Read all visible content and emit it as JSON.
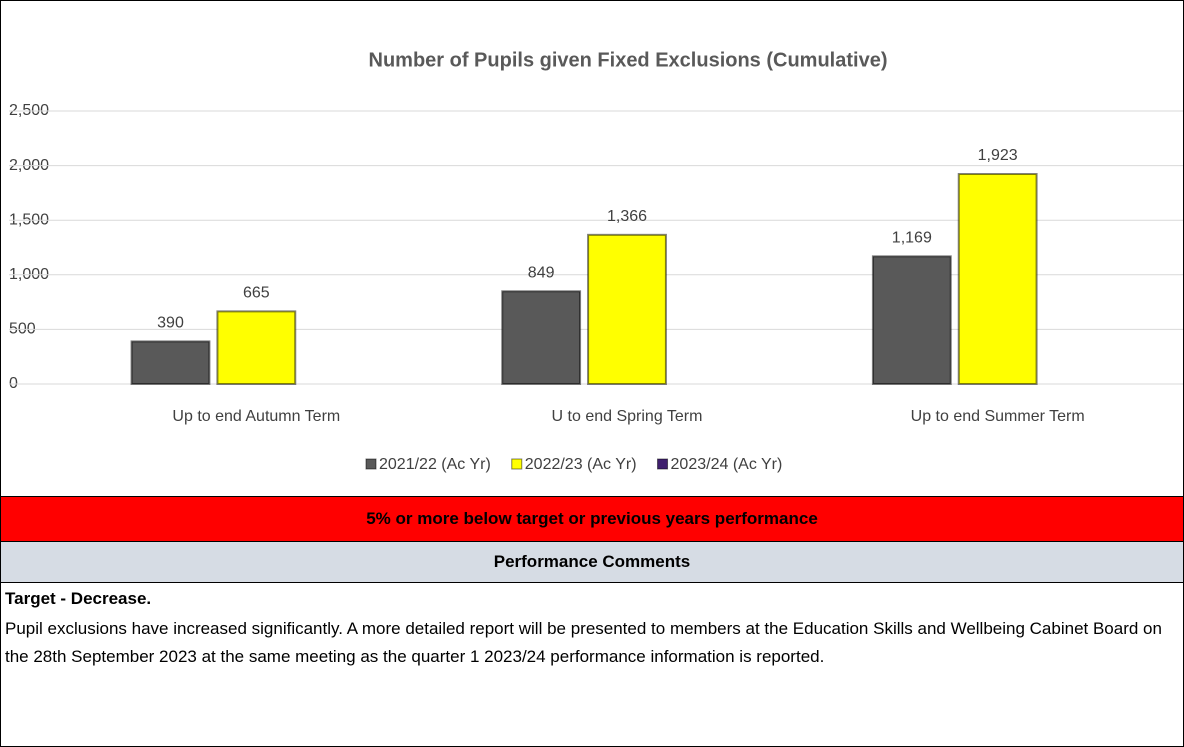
{
  "chart_data": {
    "type": "bar",
    "title": "Number of Pupils given Fixed Exclusions (Cumulative)",
    "categories": [
      "Up to end Autumn Term",
      "U to end Spring Term",
      "Up to end Summer Term"
    ],
    "series": [
      {
        "name": "2021/22 (Ac Yr)",
        "color": "#595959",
        "values": [
          390,
          849,
          1169
        ],
        "value_labels": [
          "390",
          "849",
          "1,169"
        ]
      },
      {
        "name": "2022/23 (Ac Yr)",
        "color": "#ffff00",
        "values": [
          665,
          1366,
          1923
        ],
        "value_labels": [
          "665",
          "1,366",
          "1,923"
        ]
      },
      {
        "name": "2023/24 (Ac Yr)",
        "color": "#3f1f6e",
        "values": [
          null,
          null,
          null
        ]
      }
    ],
    "ylim": [
      0,
      2500
    ],
    "yticks": [
      0,
      500,
      {
        "value": 1000,
        "label": "1,000"
      },
      {
        "value": 1500,
        "label": "1,500"
      },
      {
        "value": 2000,
        "label": "2,000"
      },
      {
        "value": 2500,
        "label": "2,500"
      }
    ],
    "grid": true,
    "legend": "bottom"
  },
  "status": "5% or more below target or previous years performance",
  "comments": {
    "heading": "Performance Comments",
    "target": "Target - Decrease.",
    "text": "Pupil exclusions have increased significantly. A more detailed report will be presented to members at the Education Skills and Wellbeing Cabinet Board on the 28th September 2023 at the same meeting as the quarter 1 2023/24 performance information is reported."
  }
}
